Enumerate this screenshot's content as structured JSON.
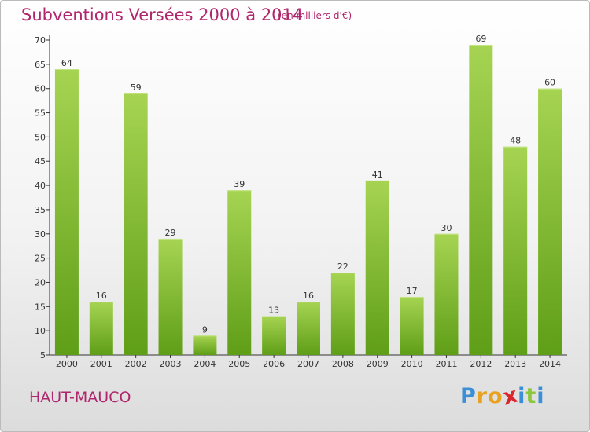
{
  "title": "Subventions Versées 2000 à 2014",
  "subtitle": "(en milliers d'€)",
  "commune": "HAUT-MAUCO",
  "logo": {
    "letters": [
      "P",
      "r",
      "o",
      "x",
      "i",
      "t",
      "i"
    ],
    "colors": [
      "#3a8fd6",
      "#e9a21f",
      "#e9a21f",
      "#d9262c",
      "#3a8fd6",
      "#8cc63f",
      "#3a8fd6"
    ]
  },
  "colors": {
    "bar_top": "#a6d452",
    "bar_bottom": "#5f9e17",
    "title": "#b0266d",
    "axis": "#333333"
  },
  "chart_data": {
    "type": "bar",
    "categories": [
      "2000",
      "2001",
      "2002",
      "2003",
      "2004",
      "2005",
      "2006",
      "2007",
      "2008",
      "2009",
      "2010",
      "2011",
      "2012",
      "2013",
      "2014"
    ],
    "values": [
      64,
      16,
      59,
      29,
      9,
      39,
      13,
      16,
      22,
      41,
      17,
      30,
      69,
      48,
      60
    ],
    "ylim": [
      5,
      70
    ],
    "yticks": [
      5,
      10,
      15,
      20,
      25,
      30,
      35,
      40,
      45,
      50,
      55,
      60,
      65,
      70
    ],
    "grid": false,
    "data_labels": true
  }
}
